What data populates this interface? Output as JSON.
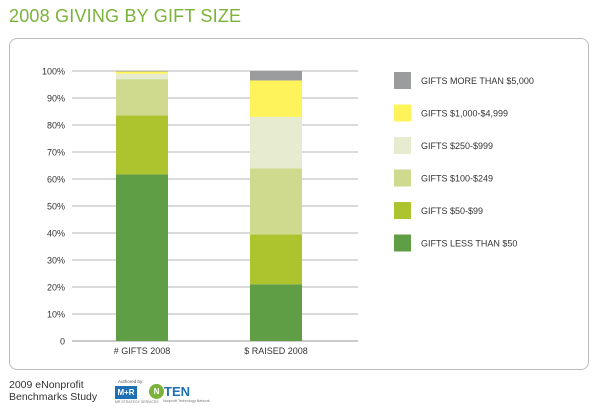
{
  "title": "2008 GIVING BY GIFT SIZE",
  "footer": {
    "line1": "2009 eNonprofit",
    "line2": "Benchmarks Study",
    "authored_by": "Authored by:",
    "mr_logo_text": "M+R",
    "mr_logo_sub": "MR STRATEGY SERVICES",
    "nten_logo_circle": "N",
    "nten_logo_text": "TEN",
    "nten_logo_sub": "Nonprofit Technology Network"
  },
  "chart_data": {
    "type": "bar",
    "stacked": true,
    "title": "2008 GIVING BY GIFT SIZE",
    "xlabel": "",
    "ylabel": "",
    "ylim": [
      0,
      100
    ],
    "y_ticks": [
      "0",
      "10%",
      "20%",
      "30%",
      "40%",
      "50%",
      "60%",
      "70%",
      "80%",
      "90%",
      "100%"
    ],
    "grid": true,
    "legend_position": "right",
    "categories": [
      "# GIFTS 2008",
      "$ RAISED 2008"
    ],
    "series": [
      {
        "name": "GIFTS LESS THAN $50",
        "color": "#5f9e45",
        "values": [
          61.7,
          21
        ]
      },
      {
        "name": "GIFTS $50-$99",
        "color": "#aec42f",
        "values": [
          21.8,
          18.5
        ]
      },
      {
        "name": "GIFTS $100-$249",
        "color": "#cfda8f",
        "values": [
          13.5,
          24.5
        ]
      },
      {
        "name": "GIFTS $250-$999",
        "color": "#e7ecd1",
        "values": [
          2,
          19
        ]
      },
      {
        "name": "GIFTS $1,000-$4,999",
        "color": "#fff35c",
        "values": [
          0.8,
          13.5
        ]
      },
      {
        "name": "GIFTS MORE THAN $5,000",
        "color": "#9a9c9e",
        "values": [
          0.2,
          3.5
        ]
      }
    ],
    "legend_order": [
      "GIFTS MORE THAN $5,000",
      "GIFTS $1,000-$4,999",
      "GIFTS $250-$999",
      "GIFTS $100-$249",
      "GIFTS $50-$99",
      "GIFTS LESS THAN $50"
    ]
  }
}
